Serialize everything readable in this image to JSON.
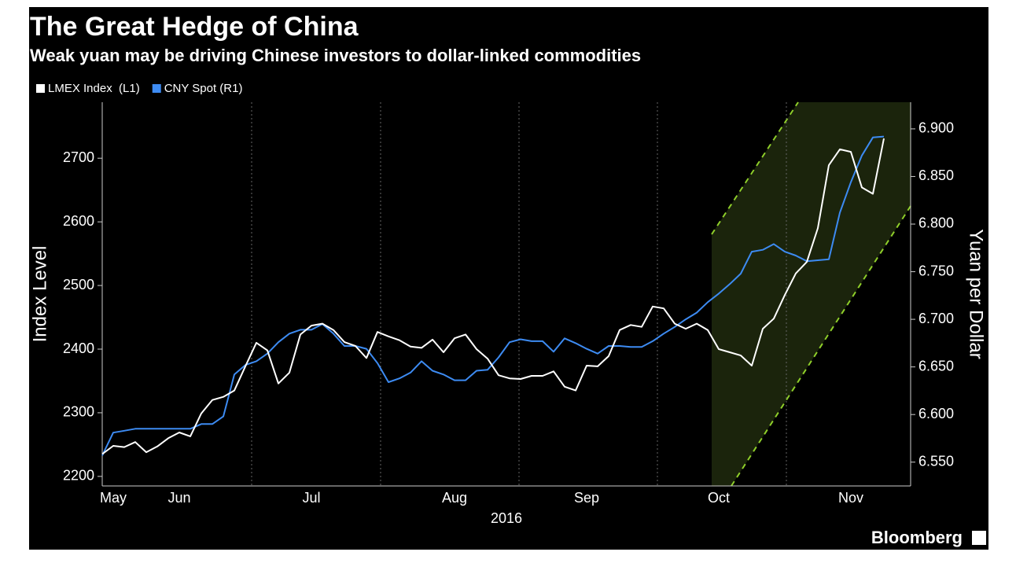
{
  "chart_data": {
    "type": "line",
    "title": "The Great Hedge of China",
    "subtitle": "Weak yuan may be driving Chinese investors to dollar-linked commodities",
    "y_label": "Index Level",
    "y2_label": "Yuan per Dollar",
    "x_label": "2016",
    "source": "Bloomberg",
    "categories": [
      null,
      "May",
      null,
      null,
      null,
      null,
      null,
      "Jun",
      null,
      null,
      null,
      null,
      null,
      null,
      null,
      null,
      null,
      null,
      null,
      "Jul",
      null,
      null,
      null,
      null,
      null,
      null,
      null,
      null,
      null,
      null,
      null,
      null,
      "Aug",
      null,
      null,
      null,
      null,
      null,
      null,
      null,
      null,
      null,
      null,
      null,
      "Sep",
      null,
      null,
      null,
      null,
      null,
      null,
      null,
      null,
      null,
      null,
      null,
      "Oct",
      null,
      null,
      null,
      null,
      null,
      null,
      null,
      null,
      null,
      null,
      null,
      "Nov",
      null,
      null,
      null
    ],
    "series": [
      {
        "name": "LMEX Index  (L1)",
        "color": "#ffffff",
        "axis": "y",
        "values": [
          2235,
          2248,
          2246,
          2254,
          2238,
          2247,
          2260,
          2269,
          2263,
          2299,
          2320,
          2325,
          2335,
          2373,
          2410,
          2398,
          2346,
          2363,
          2423,
          2437,
          2440,
          2430,
          2411,
          2405,
          2386,
          2427,
          2420,
          2414,
          2404,
          2402,
          2415,
          2395,
          2417,
          2423,
          2400,
          2385,
          2359,
          2354,
          2353,
          2358,
          2358,
          2365,
          2341,
          2335,
          2374,
          2373,
          2389,
          2430,
          2438,
          2435,
          2467,
          2464,
          2440,
          2432,
          2440,
          2430,
          2400,
          2395,
          2390,
          2374,
          2432,
          2448,
          2485,
          2519,
          2537,
          2590,
          2689,
          2714,
          2710,
          2654,
          2644,
          2731
        ]
      },
      {
        "name": "CNY Spot (R1)",
        "color": "#3d8bf2",
        "axis": "y2",
        "values": [
          6.557,
          6.581,
          6.583,
          6.585,
          6.585,
          6.585,
          6.585,
          6.585,
          6.585,
          6.59,
          6.59,
          6.598,
          6.642,
          6.652,
          6.656,
          6.664,
          6.676,
          6.685,
          6.689,
          6.689,
          6.695,
          6.685,
          6.672,
          6.672,
          6.669,
          6.654,
          6.634,
          6.638,
          6.644,
          6.656,
          6.646,
          6.642,
          6.636,
          6.636,
          6.646,
          6.647,
          6.66,
          6.676,
          6.679,
          6.677,
          6.677,
          6.666,
          6.68,
          6.675,
          6.669,
          6.664,
          6.672,
          6.672,
          6.671,
          6.671,
          6.677,
          6.685,
          6.692,
          6.7,
          6.707,
          6.718,
          6.727,
          6.737,
          6.748,
          6.771,
          6.773,
          6.779,
          6.771,
          6.767,
          6.761,
          6.762,
          6.763,
          6.812,
          6.844,
          6.872,
          6.891,
          6.892
        ]
      }
    ],
    "ylim": [
      2185,
      2788
    ],
    "yticks": [
      2200,
      2300,
      2400,
      2500,
      2600,
      2700
    ],
    "y2lim": [
      6.525,
      6.928
    ],
    "y2ticks": [
      {
        "value": 6.55,
        "label": "6.550"
      },
      {
        "value": 6.6,
        "label": "6.600"
      },
      {
        "value": 6.65,
        "label": "6.650"
      },
      {
        "value": 6.7,
        "label": "6.700"
      },
      {
        "value": 6.75,
        "label": "6.750"
      },
      {
        "value": 6.8,
        "label": "6.800"
      },
      {
        "value": 6.85,
        "label": "6.850"
      },
      {
        "value": 6.9,
        "label": "6.900"
      }
    ],
    "legend": "top-left"
  }
}
